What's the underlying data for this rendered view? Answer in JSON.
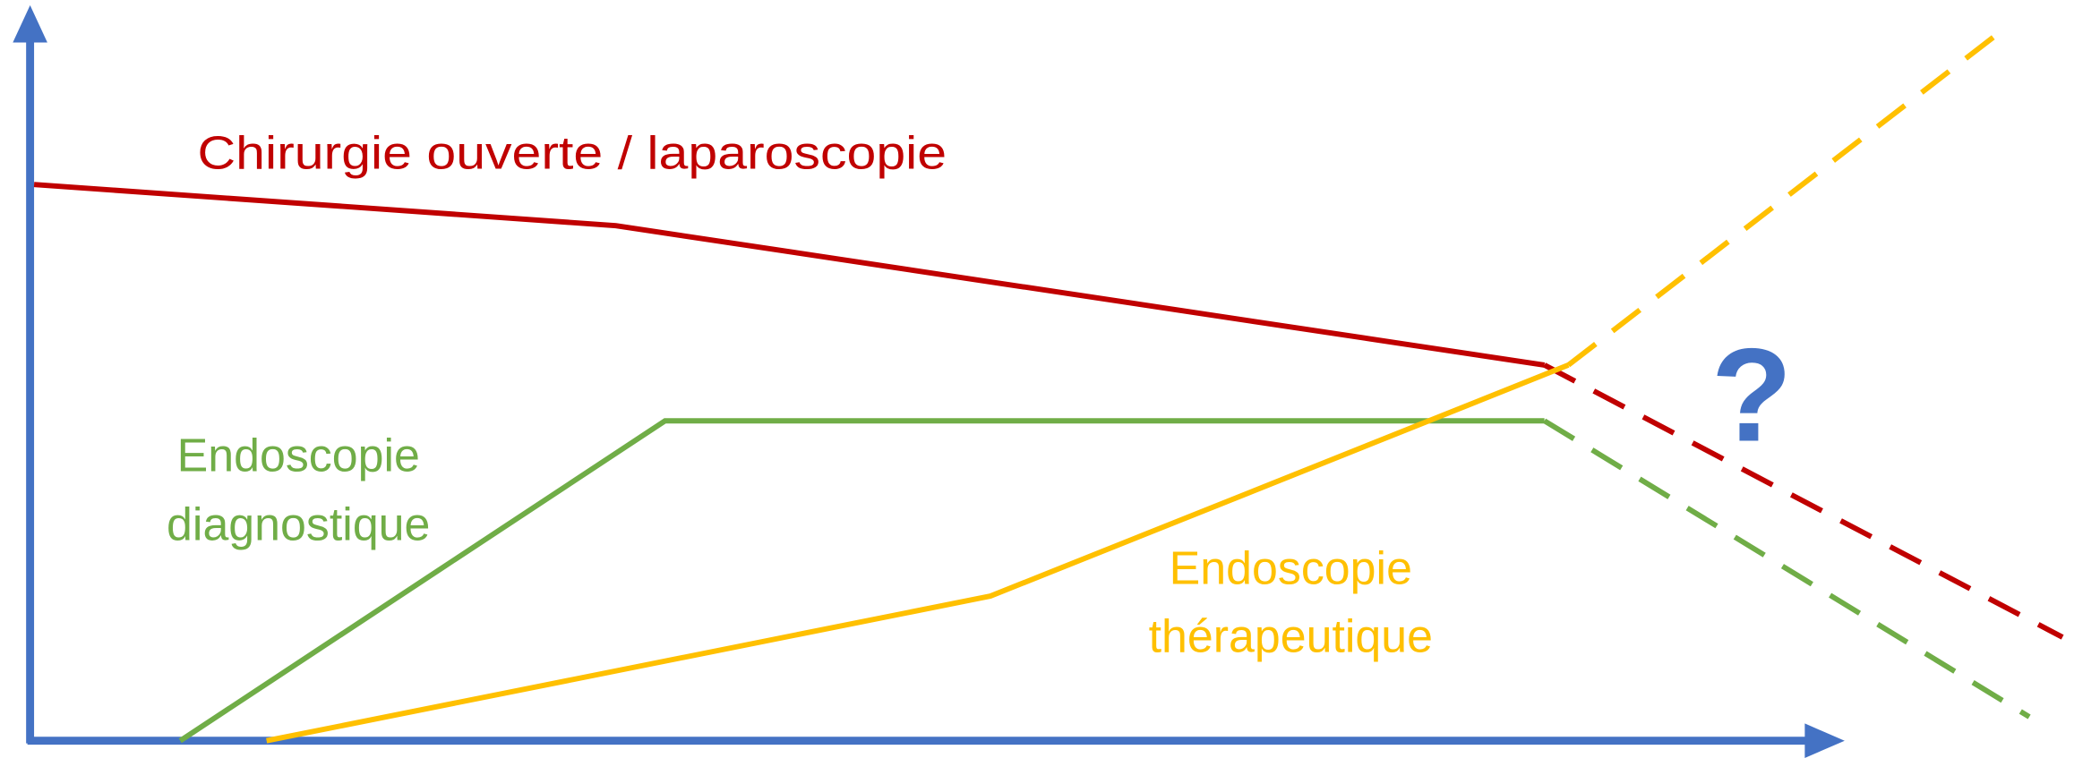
{
  "labels": {
    "surgery": "Chirurgie ouverte / laparoscopie",
    "diagnostic": [
      "Endoscopie",
      "diagnostique"
    ],
    "therapeutic": [
      "Endoscopie",
      "thérapeutique"
    ],
    "question": "?"
  }
}
